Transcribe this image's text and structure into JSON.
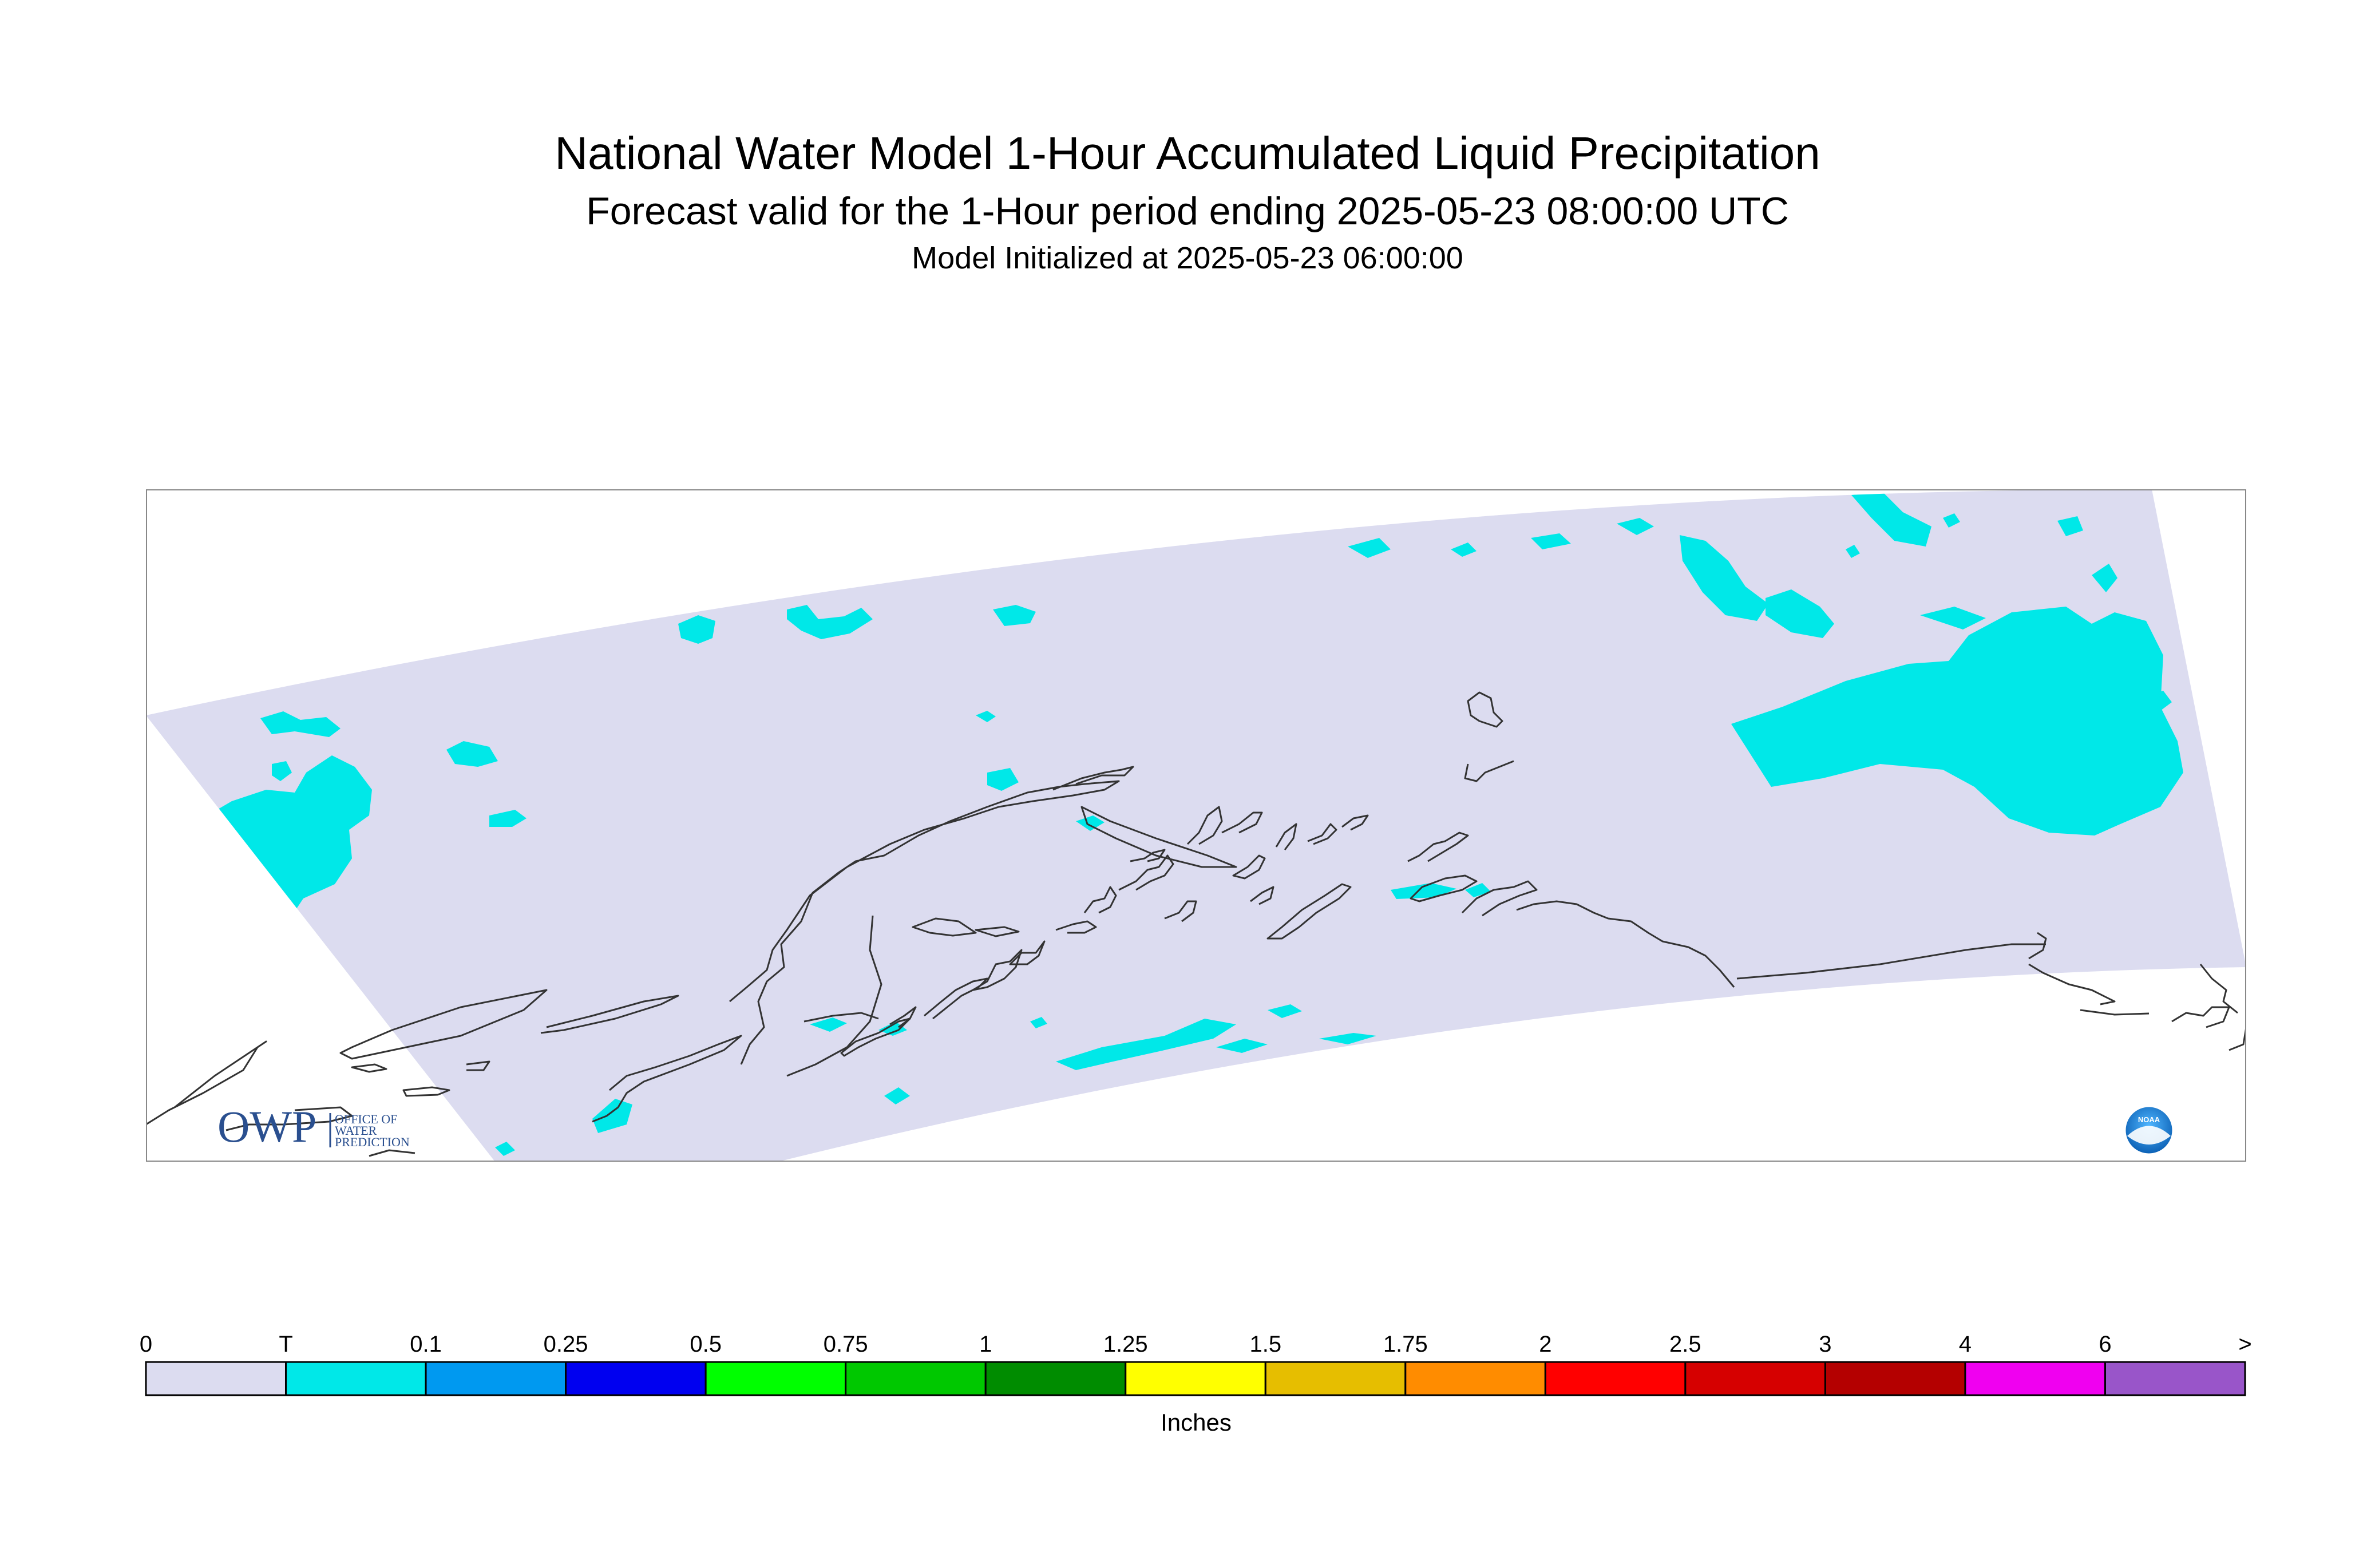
{
  "title": "National Water Model 1-Hour Accumulated Liquid Precipitation",
  "subtitle": "Forecast valid for the 1-Hour period ending 2025-05-23 08:00:00 UTC",
  "initialized": "Model Initialized at 2025-05-23 06:00:00",
  "logos": {
    "owp": {
      "mark": "OWP",
      "text_lines": [
        "OFFICE OF",
        "WATER",
        "PREDICTION"
      ]
    },
    "noaa": {
      "text": "NOAA"
    }
  },
  "map": {
    "region": "Alaska",
    "colors": {
      "background": "#ffffff",
      "domain": "#dcdcf0",
      "coastline": "#333333",
      "trace_precip": "#00e8e8"
    }
  },
  "legend": {
    "unit_label": "Inches",
    "tick_labels": [
      "0",
      "T",
      "0.1",
      "0.25",
      "0.5",
      "0.75",
      "1",
      "1.25",
      "1.5",
      "1.75",
      "2",
      "2.5",
      "3",
      "4",
      "6",
      ">"
    ],
    "bins": [
      {
        "from": "0",
        "to": "T",
        "color": "#dcdcf0"
      },
      {
        "from": "T",
        "to": "0.1",
        "color": "#00e8e8"
      },
      {
        "from": "0.1",
        "to": "0.25",
        "color": "#0099f0"
      },
      {
        "from": "0.25",
        "to": "0.5",
        "color": "#0000f0"
      },
      {
        "from": "0.5",
        "to": "0.75",
        "color": "#00ff00"
      },
      {
        "from": "0.75",
        "to": "1",
        "color": "#00c800"
      },
      {
        "from": "1",
        "to": "1.25",
        "color": "#008c00"
      },
      {
        "from": "1.25",
        "to": "1.5",
        "color": "#ffff00"
      },
      {
        "from": "1.5",
        "to": "1.75",
        "color": "#e6be00"
      },
      {
        "from": "1.75",
        "to": "2",
        "color": "#ff8c00"
      },
      {
        "from": "2",
        "to": "2.5",
        "color": "#ff0000"
      },
      {
        "from": "2.5",
        "to": "3",
        "color": "#d60000"
      },
      {
        "from": "3",
        "to": "4",
        "color": "#b40000"
      },
      {
        "from": "4",
        "to": "6",
        "color": "#f000f0"
      },
      {
        "from": "6",
        "to": ">",
        "color": "#9955c9"
      }
    ]
  }
}
